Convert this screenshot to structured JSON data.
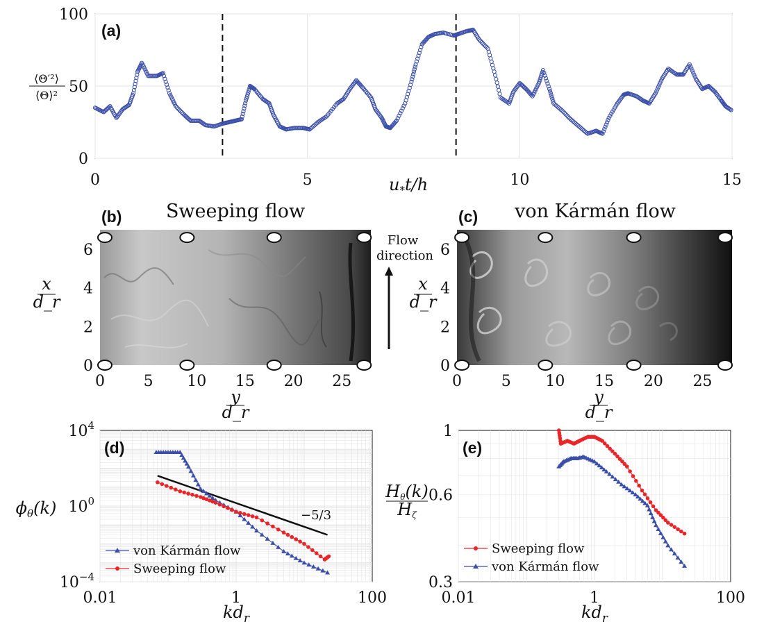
{
  "colors": {
    "blue": "#3b4fa8",
    "red": "#e8262a",
    "black": "#111111",
    "grid": "#e4e4e4"
  },
  "chart_data": [
    {
      "id": "a",
      "type": "scatter",
      "panel_label": "(a)",
      "xlabel": "u_* t/h",
      "ylabel_num": "⟨Θ′²⟩",
      "ylabel_den": "⟨Θ⟩²",
      "xlim": [
        0,
        15
      ],
      "ylim": [
        0,
        100
      ],
      "xticks": [
        0,
        5,
        10,
        15
      ],
      "yticks": [
        0,
        50,
        100
      ],
      "vlines": [
        3,
        8.5
      ],
      "series": [
        {
          "points": [
            [
              0,
              35
            ],
            [
              0.2,
              32
            ],
            [
              0.35,
              36
            ],
            [
              0.5,
              28
            ],
            [
              0.65,
              34
            ],
            [
              0.8,
              37
            ],
            [
              0.9,
              45
            ],
            [
              1.0,
              60
            ],
            [
              1.1,
              66
            ],
            [
              1.25,
              57
            ],
            [
              1.45,
              57
            ],
            [
              1.6,
              59
            ],
            [
              1.75,
              45
            ],
            [
              1.9,
              36
            ],
            [
              2.1,
              30
            ],
            [
              2.25,
              26
            ],
            [
              2.45,
              26
            ],
            [
              2.6,
              23
            ],
            [
              2.8,
              22
            ],
            [
              3.0,
              24
            ],
            [
              3.15,
              25
            ],
            [
              3.3,
              26
            ],
            [
              3.45,
              27
            ],
            [
              3.55,
              40
            ],
            [
              3.65,
              50
            ],
            [
              3.75,
              48
            ],
            [
              3.95,
              41
            ],
            [
              4.1,
              38
            ],
            [
              4.2,
              30
            ],
            [
              4.35,
              22
            ],
            [
              4.5,
              20
            ],
            [
              4.7,
              21
            ],
            [
              4.9,
              21
            ],
            [
              5.05,
              20
            ],
            [
              5.25,
              25
            ],
            [
              5.45,
              29
            ],
            [
              5.7,
              38
            ],
            [
              5.85,
              41
            ],
            [
              6.0,
              48
            ],
            [
              6.15,
              54
            ],
            [
              6.3,
              49
            ],
            [
              6.5,
              42
            ],
            [
              6.6,
              34
            ],
            [
              6.75,
              28
            ],
            [
              6.85,
              22
            ],
            [
              6.95,
              21
            ],
            [
              7.1,
              26
            ],
            [
              7.3,
              38
            ],
            [
              7.45,
              53
            ],
            [
              7.55,
              65
            ],
            [
              7.7,
              79
            ],
            [
              7.85,
              84
            ],
            [
              8.0,
              86
            ],
            [
              8.2,
              87
            ],
            [
              8.45,
              85
            ],
            [
              8.55,
              86
            ],
            [
              8.75,
              88
            ],
            [
              8.9,
              89
            ],
            [
              9.05,
              82
            ],
            [
              9.25,
              76
            ],
            [
              9.4,
              60
            ],
            [
              9.55,
              42
            ],
            [
              9.75,
              38
            ],
            [
              9.85,
              46
            ],
            [
              10.0,
              52
            ],
            [
              10.15,
              48
            ],
            [
              10.3,
              43
            ],
            [
              10.45,
              52
            ],
            [
              10.55,
              61
            ],
            [
              10.7,
              48
            ],
            [
              10.8,
              38
            ],
            [
              11.0,
              33
            ],
            [
              11.2,
              27
            ],
            [
              11.4,
              22
            ],
            [
              11.6,
              17
            ],
            [
              11.8,
              19
            ],
            [
              11.95,
              17
            ],
            [
              12.1,
              28
            ],
            [
              12.3,
              38
            ],
            [
              12.45,
              44
            ],
            [
              12.55,
              45
            ],
            [
              12.75,
              43
            ],
            [
              12.9,
              40
            ],
            [
              13.05,
              38
            ],
            [
              13.2,
              45
            ],
            [
              13.35,
              55
            ],
            [
              13.5,
              62
            ],
            [
              13.7,
              58
            ],
            [
              13.85,
              58
            ],
            [
              14.0,
              65
            ],
            [
              14.15,
              55
            ],
            [
              14.3,
              48
            ],
            [
              14.45,
              50
            ],
            [
              14.6,
              46
            ],
            [
              14.75,
              40
            ],
            [
              14.85,
              36
            ],
            [
              15,
              33
            ]
          ]
        }
      ]
    },
    {
      "id": "b",
      "type": "heatmap",
      "panel_label": "(b)",
      "title": "Sweeping flow",
      "xlabel_num": "y",
      "xlabel_den": "d_r",
      "ylabel_num": "x",
      "ylabel_den": "d_r",
      "xlim": [
        0,
        28
      ],
      "ylim": [
        0,
        7
      ],
      "xticks": [
        0,
        5,
        10,
        15,
        20,
        25
      ],
      "yticks": [
        0,
        2,
        4,
        6
      ],
      "markers_x": [
        0.5,
        9,
        18,
        27.3
      ],
      "arrow_label_1": "Flow",
      "arrow_label_2": "direction"
    },
    {
      "id": "c",
      "type": "heatmap",
      "panel_label": "(c)",
      "title": "von Kármán flow",
      "xlabel_num": "y",
      "xlabel_den": "d_r",
      "ylabel_num": "x",
      "ylabel_den": "d_r",
      "xlim": [
        0,
        28
      ],
      "ylim": [
        0,
        7
      ],
      "xticks": [
        0,
        5,
        10,
        15,
        20,
        25
      ],
      "yticks": [
        0,
        2,
        4,
        6
      ],
      "markers_x": [
        0.5,
        9,
        18,
        27.3
      ]
    },
    {
      "id": "d",
      "type": "line",
      "panel_label": "(d)",
      "xlabel": "kd_r",
      "ylabel": "ϕ_θ(k)",
      "xscale": "log",
      "yscale": "log",
      "xlim": [
        0.01,
        100
      ],
      "ylim": [
        0.0001,
        10000
      ],
      "xticks": [
        "0.01",
        "1",
        "100"
      ],
      "yticks": [
        "10^4",
        "10^0",
        "10^-4"
      ],
      "slope_label": "−5/3",
      "series": [
        {
          "name": "von Kármán flow",
          "color": "blue",
          "marker": "triangle",
          "points": [
            [
              0.067,
              700
            ],
            [
              0.1,
              700
            ],
            [
              0.15,
              700
            ],
            [
              0.2,
              120
            ],
            [
              0.3,
              8
            ],
            [
              0.5,
              2
            ],
            [
              1,
              0.5
            ],
            [
              2,
              0.05
            ],
            [
              5,
              0.004
            ],
            [
              10,
              0.001
            ],
            [
              22,
              0.0003
            ]
          ]
        },
        {
          "name": "Sweeping flow",
          "color": "red",
          "marker": "circle",
          "points": [
            [
              0.07,
              18
            ],
            [
              0.15,
              6
            ],
            [
              0.3,
              3
            ],
            [
              0.5,
              1.5
            ],
            [
              1,
              0.5
            ],
            [
              2,
              0.25
            ],
            [
              5,
              0.04
            ],
            [
              10,
              0.01
            ],
            [
              20,
              0.0015
            ],
            [
              23,
              0.0022
            ]
          ]
        }
      ],
      "fit_line": [
        [
          0.07,
          40
        ],
        [
          22,
          0.03
        ]
      ]
    },
    {
      "id": "e",
      "type": "line",
      "panel_label": "(e)",
      "xlabel": "kd_r",
      "ylabel_num": "H_θ(k)",
      "ylabel_den": "H_ζ",
      "xscale": "log",
      "yscale": "log",
      "xlim": [
        0.01,
        100
      ],
      "ylim": [
        0.3,
        1
      ],
      "xticks": [
        "0.01",
        "1",
        "100"
      ],
      "yticks": [
        "1",
        "0.6",
        "0.3"
      ],
      "series": [
        {
          "name": "Sweeping flow",
          "color": "red",
          "marker": "circle",
          "points": [
            [
              0.3,
              1.0
            ],
            [
              0.32,
              0.9
            ],
            [
              0.4,
              0.92
            ],
            [
              0.5,
              0.9
            ],
            [
              0.6,
              0.92
            ],
            [
              0.8,
              0.95
            ],
            [
              1.0,
              0.95
            ],
            [
              1.3,
              0.92
            ],
            [
              2,
              0.83
            ],
            [
              3,
              0.75
            ],
            [
              5,
              0.62
            ],
            [
              8,
              0.53
            ],
            [
              12,
              0.48
            ],
            [
              21,
              0.44
            ]
          ]
        },
        {
          "name": "von Kármán flow",
          "color": "blue",
          "marker": "triangle",
          "points": [
            [
              0.3,
              0.75
            ],
            [
              0.35,
              0.78
            ],
            [
              0.45,
              0.8
            ],
            [
              0.55,
              0.8
            ],
            [
              0.7,
              0.81
            ],
            [
              1.0,
              0.78
            ],
            [
              1.5,
              0.72
            ],
            [
              2.5,
              0.65
            ],
            [
              4,
              0.6
            ],
            [
              6,
              0.55
            ],
            [
              8,
              0.47
            ],
            [
              12,
              0.4
            ],
            [
              21,
              0.34
            ]
          ]
        }
      ]
    }
  ]
}
